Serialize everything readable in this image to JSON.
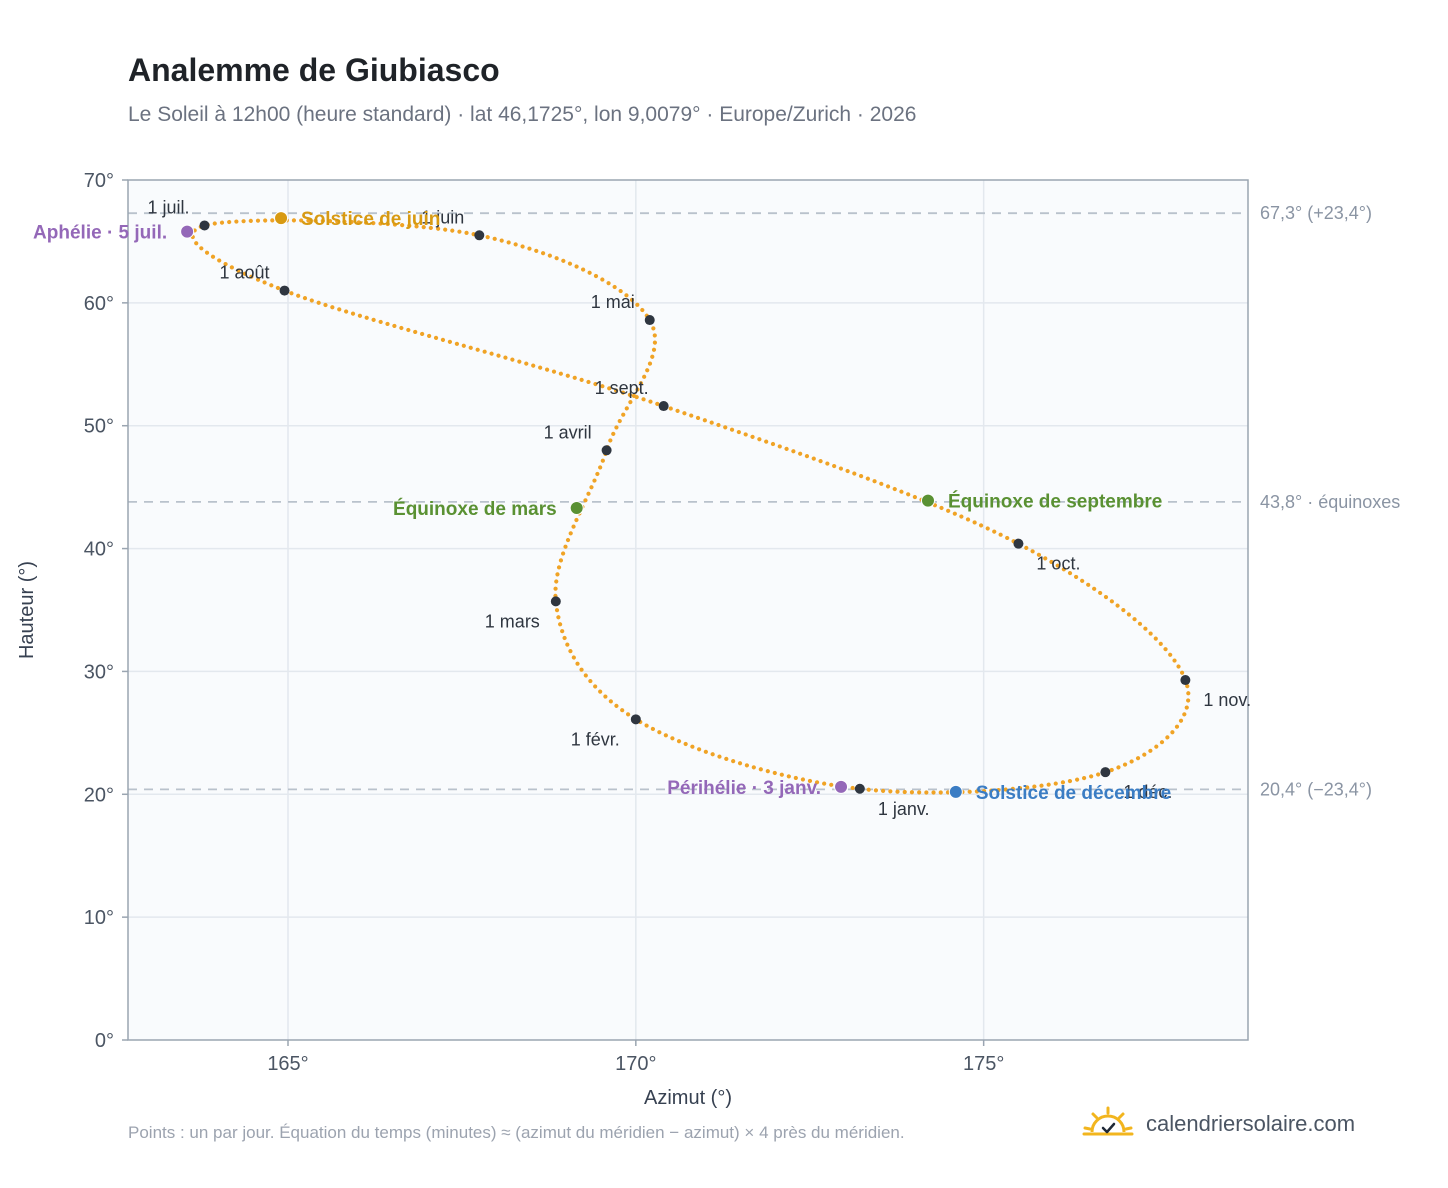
{
  "header": {
    "title": "Analemme de Giubiasco",
    "subtitle": "Le Soleil à 12h00 (heure standard) · lat 46,1725°, lon 9,0079° · Europe/Zurich · 2026"
  },
  "footer": {
    "note": "Points : un par jour. Équation du temps (minutes) ≈ (azimut du méridien − azimut) × 4 près du méridien.",
    "brand": "calendriersolaire.com",
    "brand_icon": "sun-check-icon"
  },
  "colors": {
    "curve": "#F0A325",
    "month_marker": "#2f3640",
    "equinox": "#5a9133",
    "solstice_june": "#D89A12",
    "solstice_december": "#3b7dc4",
    "aphelion_perihelion": "#9468b8",
    "reference_line": "#b9c2cc",
    "plot_background": "#f9fbfd",
    "grid": "#e3e8ee",
    "axis_frame": "#9aa5b1"
  },
  "chart_data": {
    "type": "scatter",
    "xlabel": "Azimut (°)",
    "ylabel": "Hauteur (°)",
    "xlim": [
      162.7,
      178.8
    ],
    "ylim": [
      0,
      70
    ],
    "xticks": [
      165,
      170,
      175
    ],
    "xtick_labels": [
      "165°",
      "170°",
      "175°"
    ],
    "yticks": [
      0,
      10,
      20,
      30,
      40,
      50,
      60,
      70
    ],
    "ytick_labels": [
      "0°",
      "10°",
      "20°",
      "30°",
      "40°",
      "50°",
      "60°",
      "70°"
    ],
    "grid": true,
    "reference_lines": [
      {
        "y": 67.3,
        "label": "67,3° (+23,4°)"
      },
      {
        "y": 43.8,
        "label": "43,8° · équinoxes"
      },
      {
        "y": 20.4,
        "label": "20,4° (−23,4°)"
      }
    ],
    "series": [
      {
        "points": [
          [
            173.22,
            20.45
          ],
          [
            170.0,
            26.1
          ],
          [
            168.85,
            35.7
          ],
          [
            169.58,
            48.0
          ],
          [
            170.2,
            58.6
          ],
          [
            167.75,
            65.5
          ],
          [
            163.8,
            66.3
          ],
          [
            164.95,
            61.0
          ],
          [
            170.4,
            51.6
          ],
          [
            175.5,
            40.4
          ],
          [
            177.9,
            29.3
          ],
          [
            176.75,
            21.8
          ],
          [
            173.22,
            20.45
          ]
        ]
      }
    ],
    "month_markers": [
      {
        "label": "1 janv.",
        "x": 173.22,
        "y": 20.45,
        "label_pos": "below-right"
      },
      {
        "label": "1 févr.",
        "x": 170.0,
        "y": 26.1,
        "label_pos": "below-left"
      },
      {
        "label": "1 mars",
        "x": 168.85,
        "y": 35.7,
        "label_pos": "below-left"
      },
      {
        "label": "1 avril",
        "x": 169.58,
        "y": 48.0,
        "label_pos": "above-left"
      },
      {
        "label": "1 mai",
        "x": 170.2,
        "y": 58.6,
        "label_pos": "above-left"
      },
      {
        "label": "1 juin",
        "x": 167.75,
        "y": 65.5,
        "label_pos": "above-left"
      },
      {
        "label": "1 juil.",
        "x": 163.8,
        "y": 66.3,
        "label_pos": "above-left"
      },
      {
        "label": "1 août",
        "x": 164.95,
        "y": 61.0,
        "label_pos": "above-left"
      },
      {
        "label": "1 sept.",
        "x": 170.4,
        "y": 51.6,
        "label_pos": "above-left"
      },
      {
        "label": "1 oct.",
        "x": 175.5,
        "y": 40.4,
        "label_pos": "below-right"
      },
      {
        "label": "1 nov.",
        "x": 177.9,
        "y": 29.3,
        "label_pos": "below-right"
      },
      {
        "label": "1 déc.",
        "x": 176.75,
        "y": 21.8,
        "label_pos": "below-right"
      }
    ],
    "events": [
      {
        "label": "Solstice de juin",
        "x": 164.9,
        "y": 66.9,
        "color": "#D89A12",
        "label_pos": "right"
      },
      {
        "label": "Aphélie · 5 juil.",
        "x": 163.55,
        "y": 65.8,
        "color": "#9468b8",
        "label_pos": "left"
      },
      {
        "label": "Équinoxe de mars",
        "x": 169.15,
        "y": 43.3,
        "color": "#5a9133",
        "label_pos": "left"
      },
      {
        "label": "Équinoxe de septembre",
        "x": 174.2,
        "y": 43.9,
        "color": "#5a9133",
        "label_pos": "right"
      },
      {
        "label": "Périhélie · 3 janv.",
        "x": 172.95,
        "y": 20.6,
        "color": "#9468b8",
        "label_pos": "left"
      },
      {
        "label": "Solstice de décembre",
        "x": 174.6,
        "y": 20.2,
        "color": "#3b7dc4",
        "label_pos": "right"
      }
    ]
  }
}
